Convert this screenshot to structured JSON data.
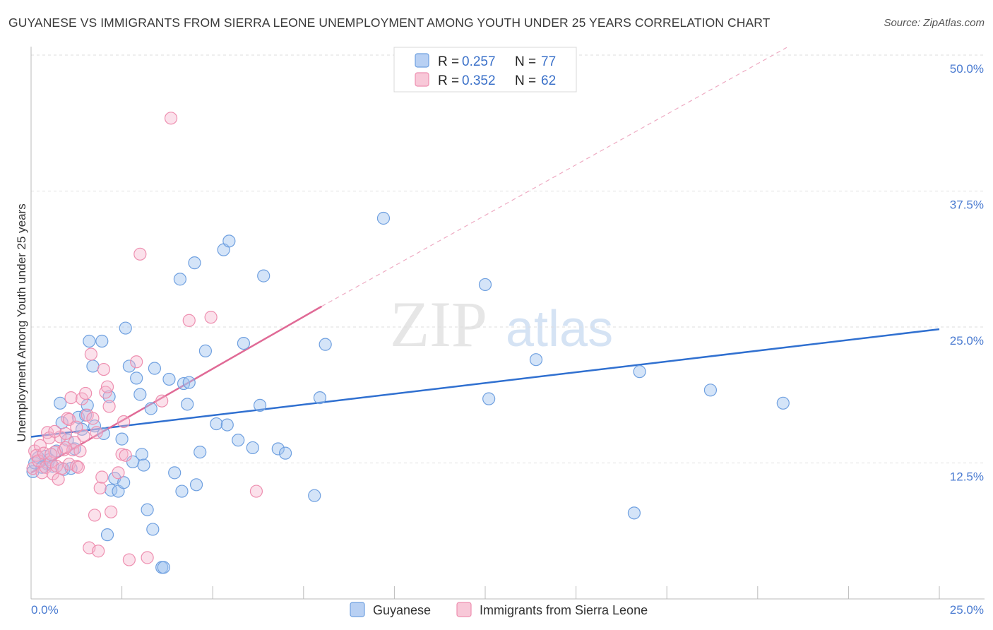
{
  "title": "GUYANESE VS IMMIGRANTS FROM SIERRA LEONE UNEMPLOYMENT AMONG YOUTH UNDER 25 YEARS CORRELATION CHART",
  "source": "Source: ZipAtlas.com",
  "watermark": {
    "zip": "ZIP",
    "atlas": "atlas"
  },
  "colors": {
    "blue": "#6fa0e0",
    "blue_fill": "#aac8f0",
    "blue_line": "#3070d0",
    "pink": "#ee8fb0",
    "pink_fill": "#f7c0d4",
    "pink_line": "#e06a96"
  },
  "legend": [
    {
      "label_r": "R =",
      "r": "0.257",
      "label_n": "N =",
      "n": "77"
    },
    {
      "label_r": "R =",
      "r": "0.352",
      "label_n": "N =",
      "n": "62"
    }
  ],
  "bottom_legend": [
    "Guyanese",
    "Immigrants from Sierra Leone"
  ],
  "chart_data": {
    "type": "scatter",
    "title": "GUYANESE VS IMMIGRANTS FROM SIERRA LEONE UNEMPLOYMENT AMONG YOUTH UNDER 25 YEARS CORRELATION CHART",
    "xlabel": "",
    "ylabel": "Unemployment Among Youth under 25 years",
    "xlim": [
      0,
      25
    ],
    "ylim": [
      0,
      50
    ],
    "x_tick_labels": [
      "0.0%",
      "25.0%"
    ],
    "y_ticks": [
      12.5,
      25,
      37.5,
      50
    ],
    "y_tick_labels": [
      "12.5%",
      "25.0%",
      "37.5%",
      "50.0%"
    ],
    "grid": true,
    "series": [
      {
        "name": "Guyanese",
        "r": 0.257,
        "n": 77,
        "trend": {
          "x": [
            0,
            25
          ],
          "y": [
            14.9,
            24.8
          ],
          "style": "solid"
        },
        "points": [
          [
            0.05,
            11.7
          ],
          [
            0.1,
            12.5
          ],
          [
            0.2,
            13.0
          ],
          [
            0.3,
            12.1
          ],
          [
            0.4,
            13.1
          ],
          [
            0.45,
            12.4
          ],
          [
            0.5,
            12.8
          ],
          [
            0.6,
            12.2
          ],
          [
            0.7,
            13.6
          ],
          [
            0.8,
            18.0
          ],
          [
            0.85,
            16.2
          ],
          [
            0.9,
            11.9
          ],
          [
            1.0,
            14.6
          ],
          [
            1.1,
            12.0
          ],
          [
            1.2,
            13.8
          ],
          [
            1.3,
            16.7
          ],
          [
            1.4,
            15.6
          ],
          [
            1.5,
            16.9
          ],
          [
            1.55,
            17.8
          ],
          [
            1.6,
            23.7
          ],
          [
            1.7,
            21.4
          ],
          [
            1.75,
            15.9
          ],
          [
            1.95,
            23.7
          ],
          [
            2.0,
            15.2
          ],
          [
            2.1,
            5.9
          ],
          [
            2.15,
            18.6
          ],
          [
            2.2,
            10.0
          ],
          [
            2.3,
            11.1
          ],
          [
            2.4,
            9.9
          ],
          [
            2.5,
            14.7
          ],
          [
            2.55,
            10.7
          ],
          [
            2.6,
            24.9
          ],
          [
            2.7,
            21.4
          ],
          [
            2.8,
            12.6
          ],
          [
            2.9,
            20.3
          ],
          [
            3.0,
            18.8
          ],
          [
            3.05,
            13.3
          ],
          [
            3.1,
            12.3
          ],
          [
            3.2,
            8.2
          ],
          [
            3.3,
            17.5
          ],
          [
            3.35,
            6.4
          ],
          [
            3.4,
            21.2
          ],
          [
            3.6,
            2.9
          ],
          [
            3.65,
            2.9
          ],
          [
            3.8,
            20.2
          ],
          [
            3.95,
            11.6
          ],
          [
            4.1,
            29.4
          ],
          [
            4.15,
            9.9
          ],
          [
            4.2,
            19.8
          ],
          [
            4.3,
            17.9
          ],
          [
            4.35,
            19.9
          ],
          [
            4.5,
            30.9
          ],
          [
            4.55,
            10.5
          ],
          [
            4.65,
            13.5
          ],
          [
            4.8,
            22.8
          ],
          [
            5.1,
            16.1
          ],
          [
            5.3,
            32.1
          ],
          [
            5.4,
            16.0
          ],
          [
            5.45,
            32.9
          ],
          [
            5.7,
            14.6
          ],
          [
            5.85,
            23.5
          ],
          [
            6.1,
            13.9
          ],
          [
            6.3,
            17.8
          ],
          [
            6.4,
            29.7
          ],
          [
            6.8,
            13.8
          ],
          [
            7.0,
            13.4
          ],
          [
            7.8,
            9.5
          ],
          [
            7.95,
            18.5
          ],
          [
            8.1,
            23.4
          ],
          [
            9.7,
            35.0
          ],
          [
            12.5,
            28.9
          ],
          [
            12.6,
            18.4
          ],
          [
            13.9,
            22.0
          ],
          [
            16.6,
            7.9
          ],
          [
            16.75,
            20.9
          ],
          [
            18.7,
            19.2
          ],
          [
            20.7,
            18.0
          ]
        ]
      },
      {
        "name": "Immigrants from Sierra Leone",
        "r": 0.352,
        "n": 62,
        "trend": {
          "x": [
            0,
            8.0
          ],
          "y": [
            11.6,
            26.9
          ],
          "style": "solid"
        },
        "trend_ext": {
          "x": [
            8.0,
            20.8
          ],
          "y": [
            26.9,
            50.7
          ],
          "style": "dashed"
        },
        "points": [
          [
            0.05,
            12.0
          ],
          [
            0.1,
            13.6
          ],
          [
            0.15,
            13.2
          ],
          [
            0.2,
            12.7
          ],
          [
            0.25,
            14.1
          ],
          [
            0.3,
            11.6
          ],
          [
            0.35,
            13.4
          ],
          [
            0.4,
            12.1
          ],
          [
            0.45,
            15.3
          ],
          [
            0.5,
            14.8
          ],
          [
            0.55,
            12.6
          ],
          [
            0.6,
            11.5
          ],
          [
            0.65,
            13.5
          ],
          [
            0.7,
            12.2
          ],
          [
            0.75,
            11.0
          ],
          [
            0.8,
            14.9
          ],
          [
            0.85,
            12.0
          ],
          [
            0.9,
            13.7
          ],
          [
            0.95,
            15.2
          ],
          [
            1.0,
            16.6
          ],
          [
            1.05,
            12.4
          ],
          [
            1.1,
            18.5
          ],
          [
            1.15,
            13.7
          ],
          [
            1.2,
            14.4
          ],
          [
            1.25,
            12.2
          ],
          [
            1.3,
            12.1
          ],
          [
            1.35,
            13.6
          ],
          [
            1.4,
            18.4
          ],
          [
            1.45,
            15.0
          ],
          [
            1.5,
            18.9
          ],
          [
            1.55,
            16.9
          ],
          [
            1.6,
            4.7
          ],
          [
            1.65,
            22.5
          ],
          [
            1.7,
            16.6
          ],
          [
            1.75,
            7.7
          ],
          [
            1.8,
            15.3
          ],
          [
            1.85,
            4.4
          ],
          [
            1.9,
            10.2
          ],
          [
            1.95,
            11.2
          ],
          [
            2.0,
            21.1
          ],
          [
            2.05,
            19.0
          ],
          [
            2.1,
            19.5
          ],
          [
            2.15,
            17.7
          ],
          [
            2.2,
            8.0
          ],
          [
            2.4,
            11.6
          ],
          [
            2.5,
            13.3
          ],
          [
            2.55,
            16.3
          ],
          [
            2.6,
            13.2
          ],
          [
            2.7,
            3.6
          ],
          [
            2.9,
            21.8
          ],
          [
            3.0,
            31.7
          ],
          [
            3.2,
            3.8
          ],
          [
            3.6,
            18.2
          ],
          [
            3.85,
            44.2
          ],
          [
            4.35,
            25.6
          ],
          [
            4.95,
            25.9
          ],
          [
            6.2,
            9.9
          ],
          [
            0.55,
            13.3
          ],
          [
            0.65,
            15.4
          ],
          [
            0.95,
            13.9
          ],
          [
            1.05,
            16.5
          ],
          [
            1.25,
            15.8
          ]
        ]
      }
    ]
  }
}
